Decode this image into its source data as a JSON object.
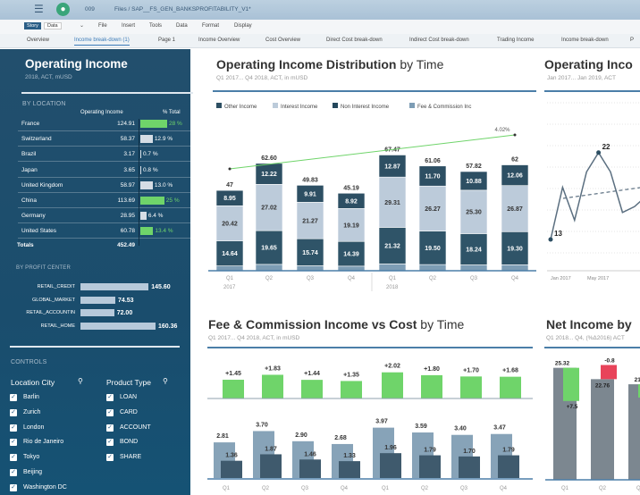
{
  "header": {
    "doc_id": "009",
    "path": "Files / SAP__FS_GEN_BANKSPROFITABILITY_V1*",
    "menu_icon": "hamburger-icon",
    "avatar_icon": "user-avatar-icon"
  },
  "toolbar": {
    "story": "Story",
    "data": "Data",
    "menus": [
      "File",
      "Insert",
      "Tools",
      "Data",
      "Format",
      "Display"
    ]
  },
  "tabs": [
    "Overview",
    "Income break-down (1)",
    "Page 1",
    "Income Overview",
    "Cost Overview",
    "Direct Cost break-down",
    "Indirect Cost break-down",
    "Trading Income",
    "Income break-down",
    "P"
  ],
  "active_tab": "Income break-down (1)",
  "left": {
    "title": "Operating Income",
    "subtitle": "2018, ACT, mUSD",
    "by_location": {
      "label": "BY LOCATION",
      "col_value": "Operating Income",
      "col_pct": "% Total",
      "rows": [
        {
          "name": "France",
          "value": "124.91",
          "pct": "28 %",
          "pct_num": 28,
          "highlight": true
        },
        {
          "name": "Switzerland",
          "value": "58.37",
          "pct": "12.9 %",
          "pct_num": 12.9,
          "highlight": false
        },
        {
          "name": "Brazil",
          "value": "3.17",
          "pct": "0.7 %",
          "pct_num": 0.7,
          "highlight": false
        },
        {
          "name": "Japan",
          "value": "3.65",
          "pct": "0.8 %",
          "pct_num": 0.8,
          "highlight": false
        },
        {
          "name": "United Kingdom",
          "value": "58.97",
          "pct": "13.0 %",
          "pct_num": 13.0,
          "highlight": false
        },
        {
          "name": "China",
          "value": "113.69",
          "pct": "25 %",
          "pct_num": 25,
          "highlight": true
        },
        {
          "name": "Germany",
          "value": "28.95",
          "pct": "6.4 %",
          "pct_num": 6.4,
          "highlight": false
        },
        {
          "name": "United States",
          "value": "60.78",
          "pct": "13.4 %",
          "pct_num": 13.4,
          "highlight": true
        }
      ],
      "totals_label": "Totals",
      "totals_value": "452.49"
    },
    "by_profit_center": {
      "label": "BY PROFIT CENTER",
      "rows": [
        {
          "name": "RETAIL_CREDIT",
          "value": 145.6,
          "label": "145.60"
        },
        {
          "name": "GLOBAL_MARKET",
          "value": 74.53,
          "label": "74.53"
        },
        {
          "name": "RETAIL_ACCOUNTIN",
          "value": 72.0,
          "label": "72.00"
        },
        {
          "name": "RETAIL_HOME",
          "value": 160.36,
          "label": "160.36"
        }
      ]
    },
    "controls": {
      "label": "CONTROLS",
      "location_city": {
        "label": "Location City",
        "items": [
          "Barlin",
          "Zurich",
          "London",
          "Rio de Janeiro",
          "Tokyo",
          "Beijing",
          "Washington DC"
        ]
      },
      "product_type": {
        "label": "Product Type",
        "items": [
          "LOAN",
          "CARD",
          "ACCOUNT",
          "BOND",
          "SHARE"
        ]
      }
    }
  },
  "colors": {
    "green": "#6fd46a",
    "dark": "#2d4f63",
    "light": "#bccbda",
    "fee": "#7d9db5",
    "red": "#e8435a",
    "gray": "#7c8790",
    "accent": "#4b7ea8"
  },
  "chart_data": [
    {
      "type": "bar",
      "stacked": true,
      "title_bold": "Operating Income Distribution",
      "title_rest": " by Time",
      "subtitle": "Q1 2017... Q4 2018, ACT, in mUSD",
      "categories": [
        "Q1",
        "Q2",
        "Q3",
        "Q4",
        "Q1",
        "Q2",
        "Q3",
        "Q4"
      ],
      "years": [
        "2017",
        "2018"
      ],
      "legend": [
        "Other Income",
        "Interest Income",
        "Non Interest Income",
        "Fee & Commission Inc"
      ],
      "series": [
        {
          "name": "Fee & Commission Inc",
          "values": [
            2.81,
            3.7,
            2.9,
            2.68,
            3.97,
            3.59,
            3.4,
            3.47
          ]
        },
        {
          "name": "Non Interest Income",
          "values": [
            14.64,
            19.65,
            15.74,
            14.39,
            21.32,
            19.5,
            18.24,
            19.3
          ]
        },
        {
          "name": "Interest Income",
          "values": [
            20.42,
            27.02,
            21.27,
            19.19,
            29.31,
            26.27,
            25.3,
            26.87
          ]
        },
        {
          "name": "Other Income",
          "values": [
            8.95,
            12.22,
            9.91,
            8.92,
            12.87,
            11.7,
            10.88,
            12.06
          ]
        }
      ],
      "totals": [
        "47",
        "62.60",
        "49.83",
        "45.19",
        "67.47",
        "61.06",
        "57.82",
        "62"
      ],
      "trend_label": "4.02%"
    },
    {
      "type": "line",
      "title_bold": "Operating Inco",
      "subtitle": "Jan 2017... Jan 2019, ACT",
      "x": [
        "Jan 2017",
        "Feb 2017",
        "Mar 2017",
        "Apr 2017",
        "May 2017",
        "Jun 2017",
        "Jul 2017",
        "Aug 2017",
        "Sep 2017"
      ],
      "values": [
        13,
        18.4,
        15,
        20,
        22,
        20,
        15.8,
        16.4,
        17.5
      ],
      "labels": {
        "0": "13",
        "4": "22"
      },
      "xticks": [
        "Jan 2017",
        "May 2017"
      ],
      "trend": "dashed"
    },
    {
      "type": "bar",
      "title_bold": "Fee & Commission Income vs Cost",
      "title_rest": " by Time",
      "subtitle": "Q1 2017... Q4 2018, ACT, in mUSD",
      "categories": [
        "Q1",
        "Q2",
        "Q3",
        "Q4",
        "Q1",
        "Q2",
        "Q3",
        "Q4"
      ],
      "difference": {
        "values": [
          1.45,
          1.83,
          1.44,
          1.35,
          2.02,
          1.8,
          1.7,
          1.68
        ],
        "labels": [
          "+1.45",
          "+1.83",
          "+1.44",
          "+1.35",
          "+2.02",
          "+1.80",
          "+1.70",
          "+1.68"
        ]
      },
      "series": [
        {
          "values": [
            2.81,
            3.7,
            2.9,
            2.68,
            3.97,
            3.59,
            3.4,
            3.47
          ],
          "labels": [
            "2.81",
            "3.70",
            "2.90",
            "2.68",
            "3.97",
            "3.59",
            "3.40",
            "3.47"
          ]
        },
        {
          "values": [
            1.36,
            1.87,
            1.46,
            1.33,
            1.96,
            1.79,
            1.7,
            1.79
          ],
          "labels": [
            "1.36",
            "1.87",
            "1.46",
            "1.33",
            "1.96",
            "1.79",
            "1.70",
            "1.79"
          ]
        }
      ]
    },
    {
      "type": "bar",
      "title_bold": "Net Income by",
      "subtitle": "Q1 2018... Q4, (%Δ2016) ACT",
      "categories": [
        "Q1",
        "Q2",
        "Q3"
      ],
      "values": [
        25.32,
        22.76,
        21.6
      ],
      "labels": [
        "25.32",
        "22.76",
        "21.6"
      ],
      "deltas": [
        7.5,
        -0.8,
        3
      ],
      "delta_labels": [
        "+7.5",
        "-0.8",
        "+3"
      ]
    }
  ]
}
